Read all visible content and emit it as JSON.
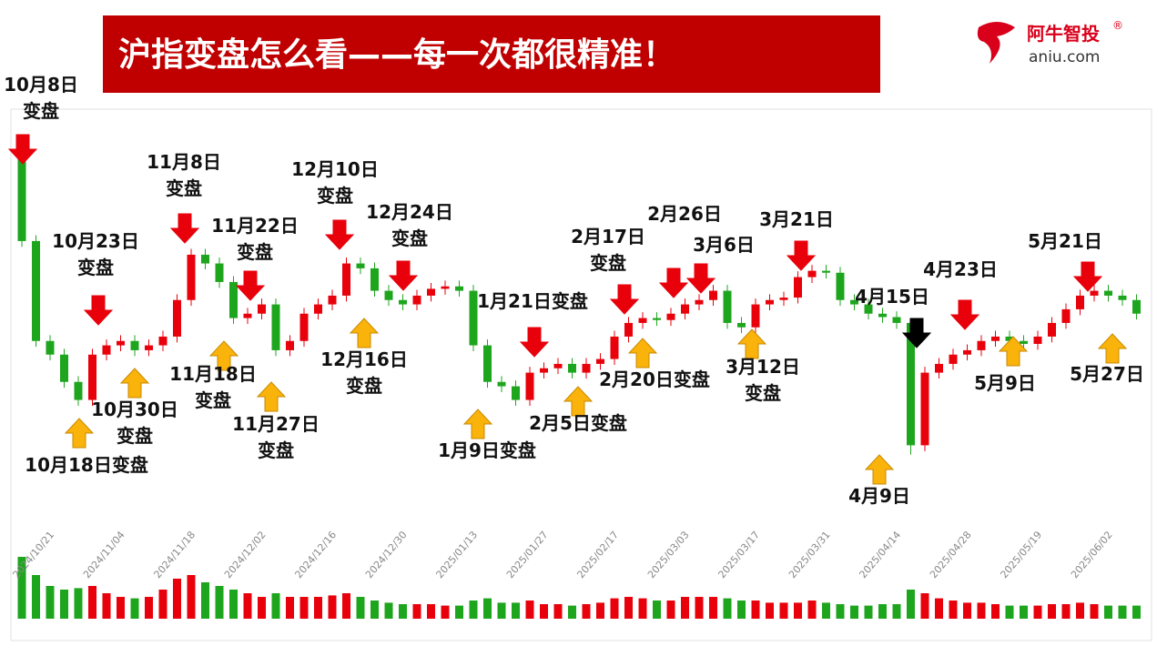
{
  "header": {
    "title": "沪指变盘怎么看——每一次都很精准！",
    "logo": {
      "name": "阿牛智投",
      "mark": "®",
      "site": "aniu.com"
    }
  },
  "chart_data": {
    "type": "candlestick",
    "categories": [
      null,
      "2024/10/21",
      null,
      null,
      null,
      null,
      "2024/11/04",
      null,
      null,
      null,
      null,
      "2024/11/18",
      null,
      null,
      null,
      null,
      "2024/12/02",
      null,
      null,
      null,
      null,
      "2024/12/16",
      null,
      null,
      null,
      null,
      "2024/12/30",
      null,
      null,
      null,
      null,
      "2025/01/13",
      null,
      null,
      null,
      null,
      "2025/01/27",
      null,
      null,
      null,
      null,
      "2025/02/17",
      null,
      null,
      null,
      null,
      "2025/03/03",
      null,
      null,
      null,
      null,
      "2025/03/17",
      null,
      null,
      null,
      null,
      "2025/03/31",
      null,
      null,
      null,
      null,
      "2025/04/14",
      null,
      null,
      null,
      null,
      "2025/04/28",
      null,
      null,
      null,
      null,
      "2025/05/19",
      null,
      null,
      null,
      null,
      "2025/06/02",
      null,
      null,
      null
    ],
    "open": [
      3674,
      3478,
      3273,
      3245,
      3189,
      3152,
      3245,
      3264,
      3273,
      3254,
      3264,
      3282,
      3357,
      3450,
      3432,
      3394,
      3320,
      3329,
      3348,
      3254,
      3273,
      3329,
      3348,
      3366,
      3432,
      3422,
      3376,
      3357,
      3348,
      3366,
      3380,
      3385,
      3376,
      3264,
      3189,
      3180,
      3152,
      3208,
      3217,
      3226,
      3208,
      3226,
      3236,
      3282,
      3310,
      3320,
      3316,
      3329,
      3348,
      3357,
      3376,
      3310,
      3301,
      3348,
      3357,
      3362,
      3404,
      3417,
      3413,
      3357,
      3348,
      3329,
      3322,
      3310,
      3059,
      3208,
      3226,
      3245,
      3254,
      3273,
      3282,
      3273,
      3267,
      3282,
      3310,
      3338,
      3366,
      3376,
      3366,
      3357
    ],
    "high": [
      3674,
      3490,
      3285,
      3257,
      3201,
      3257,
      3276,
      3285,
      3285,
      3276,
      3294,
      3369,
      3462,
      3462,
      3444,
      3406,
      3341,
      3360,
      3360,
      3285,
      3341,
      3360,
      3378,
      3444,
      3444,
      3434,
      3388,
      3369,
      3378,
      3392,
      3397,
      3397,
      3388,
      3276,
      3201,
      3192,
      3220,
      3229,
      3238,
      3238,
      3238,
      3248,
      3294,
      3322,
      3332,
      3332,
      3341,
      3360,
      3369,
      3388,
      3388,
      3322,
      3360,
      3369,
      3374,
      3416,
      3429,
      3429,
      3425,
      3369,
      3360,
      3341,
      3334,
      3315,
      3220,
      3238,
      3257,
      3266,
      3285,
      3294,
      3294,
      3285,
      3294,
      3322,
      3350,
      3378,
      3388,
      3388,
      3378,
      3369
    ],
    "low": [
      3466,
      3261,
      3233,
      3177,
      3140,
      3140,
      3233,
      3252,
      3242,
      3242,
      3252,
      3270,
      3345,
      3420,
      3382,
      3308,
      3308,
      3317,
      3242,
      3242,
      3261,
      3317,
      3336,
      3354,
      3410,
      3364,
      3345,
      3336,
      3336,
      3354,
      3368,
      3364,
      3252,
      3177,
      3168,
      3140,
      3140,
      3196,
      3205,
      3196,
      3196,
      3214,
      3224,
      3270,
      3298,
      3304,
      3304,
      3317,
      3336,
      3345,
      3298,
      3289,
      3289,
      3336,
      3345,
      3350,
      3392,
      3401,
      3345,
      3336,
      3317,
      3310,
      3298,
      3040,
      3047,
      3196,
      3214,
      3233,
      3242,
      3261,
      3261,
      3255,
      3255,
      3270,
      3298,
      3326,
      3354,
      3354,
      3345,
      3317
    ],
    "close": [
      3478,
      3273,
      3245,
      3189,
      3152,
      3245,
      3264,
      3273,
      3254,
      3264,
      3282,
      3357,
      3450,
      3432,
      3394,
      3320,
      3329,
      3348,
      3254,
      3273,
      3329,
      3348,
      3366,
      3432,
      3422,
      3376,
      3357,
      3348,
      3366,
      3380,
      3385,
      3376,
      3264,
      3189,
      3180,
      3152,
      3208,
      3217,
      3226,
      3208,
      3226,
      3236,
      3282,
      3310,
      3320,
      3316,
      3329,
      3348,
      3357,
      3376,
      3310,
      3301,
      3348,
      3357,
      3362,
      3404,
      3417,
      3413,
      3357,
      3348,
      3329,
      3322,
      3310,
      3059,
      3208,
      3226,
      3245,
      3254,
      3273,
      3282,
      3273,
      3267,
      3282,
      3310,
      3338,
      3366,
      3376,
      3366,
      3357,
      3329
    ],
    "ylim": [
      3000,
      3700
    ],
    "volume": [
      85,
      60,
      45,
      40,
      42,
      45,
      35,
      30,
      28,
      30,
      40,
      55,
      60,
      50,
      45,
      40,
      35,
      30,
      35,
      30,
      30,
      30,
      32,
      35,
      30,
      25,
      22,
      20,
      20,
      20,
      18,
      18,
      25,
      28,
      22,
      22,
      25,
      20,
      20,
      18,
      20,
      22,
      28,
      30,
      28,
      25,
      25,
      30,
      30,
      30,
      28,
      25,
      25,
      22,
      22,
      22,
      25,
      22,
      20,
      18,
      18,
      20,
      20,
      40,
      35,
      28,
      25,
      22,
      22,
      20,
      18,
      18,
      18,
      20,
      20,
      22,
      20,
      18,
      18,
      18
    ],
    "volume_lim": [
      0,
      100
    ],
    "up_color": "#e8000b",
    "down_color": "#1ea51e"
  },
  "annotations": [
    [
      "10月8日",
      "变盘"
    ],
    [
      "10月23日",
      "变盘"
    ],
    [
      "10月18日变盘"
    ],
    [
      "10月30日",
      "变盘"
    ],
    [
      "11月8日",
      "变盘"
    ],
    [
      "11月18日",
      "变盘"
    ],
    [
      "11月22日",
      "变盘"
    ],
    [
      "11月27日",
      "变盘"
    ],
    [
      "12月10日",
      "变盘"
    ],
    [
      "12月16日",
      "变盘"
    ],
    [
      "12月24日",
      "变盘"
    ],
    [
      "1月21日变盘"
    ],
    [
      "1月9日变盘"
    ],
    [
      "2月5日变盘"
    ],
    [
      "2月17日",
      "变盘"
    ],
    [
      "2月20日变盘"
    ],
    [
      "2月26日"
    ],
    [
      "3月6日"
    ],
    [
      "3月12日",
      "变盘"
    ],
    [
      "3月21日"
    ],
    [
      "4月15日"
    ],
    [
      "4月9日"
    ],
    [
      "4月23日"
    ],
    [
      "5月9日"
    ],
    [
      "5月21日"
    ],
    [
      "5月27日"
    ]
  ]
}
